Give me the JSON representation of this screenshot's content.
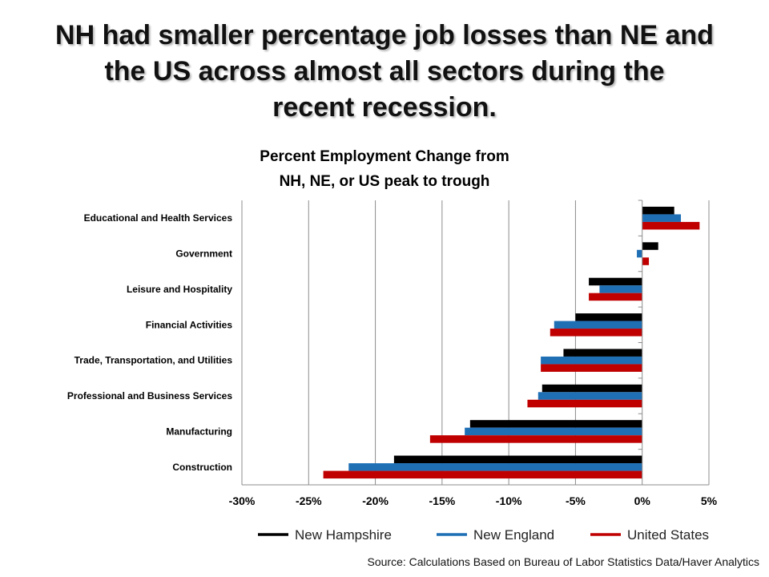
{
  "slide": {
    "title_line1": "NH had smaller percentage job losses than NE and",
    "title_line2": "the US across almost all sectors during the",
    "title_line3": "recent recession.",
    "source": "Source: Calculations Based on Bureau of Labor Statistics Data/Haver Analytics"
  },
  "chart_data": {
    "type": "bar",
    "orientation": "horizontal",
    "title_line1": "Percent Employment Change from",
    "title_line2": "NH, NE, or US peak to trough",
    "categories": [
      "Educational and Health Services",
      "Government",
      "Leisure and Hospitality",
      "Financial Activities",
      "Trade, Transportation, and Utilities",
      "Professional and Business Services",
      "Manufacturing",
      "Construction"
    ],
    "series": [
      {
        "name": "New Hampshire",
        "color": "#000000",
        "values": [
          2.4,
          1.2,
          -4.0,
          -5.0,
          -5.9,
          -7.5,
          -12.9,
          -18.6
        ]
      },
      {
        "name": "New England",
        "color": "#1F6FB5",
        "values": [
          2.9,
          -0.4,
          -3.2,
          -6.6,
          -7.6,
          -7.8,
          -13.3,
          -22.0
        ]
      },
      {
        "name": "United States",
        "color": "#C00000",
        "values": [
          4.3,
          0.5,
          -4.0,
          -6.9,
          -7.6,
          -8.6,
          -15.9,
          -23.9
        ]
      }
    ],
    "xlim": [
      -30,
      5
    ],
    "xticks": [
      -30,
      -25,
      -20,
      -15,
      -10,
      -5,
      0,
      5
    ],
    "xtick_labels": [
      "-30%",
      "-25%",
      "-20%",
      "-15%",
      "-10%",
      "-5%",
      "0%",
      "5%"
    ],
    "grid": true,
    "legend": "bottom"
  }
}
